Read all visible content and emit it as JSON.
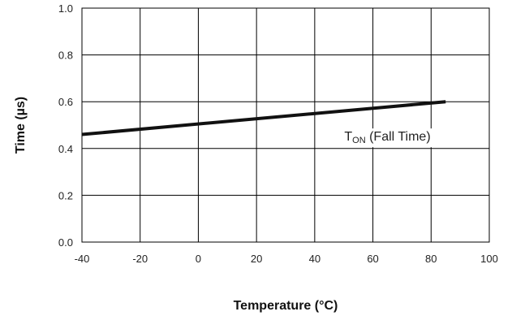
{
  "chart_data": {
    "type": "line",
    "title": "",
    "xlabel": "Temperature (°C)",
    "ylabel": "Time (µs)",
    "xlim": [
      -40,
      100
    ],
    "ylim": [
      0.0,
      1.0
    ],
    "x_ticks": [
      "-40",
      "-20",
      "0",
      "20",
      "40",
      "60",
      "80",
      "100"
    ],
    "y_ticks": [
      "0.0",
      "0.2",
      "0.4",
      "0.6",
      "0.8",
      "1.0"
    ],
    "grid": true,
    "legend": "none",
    "series": [
      {
        "x": [
          -40,
          85
        ],
        "y": [
          0.46,
          0.6
        ],
        "color": "#111111"
      }
    ],
    "annotation": {
      "main": "T",
      "sub": "ON",
      "rest": " (Fall Time)",
      "x": 65,
      "y": 0.43
    }
  }
}
